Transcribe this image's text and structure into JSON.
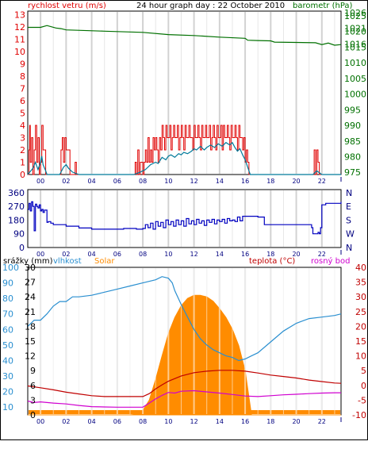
{
  "header": {
    "wind_label": "rychlost vetru (m/s)",
    "title": "24 hour graph day : 22 October 2010",
    "baro_label": "barometr (hPa)"
  },
  "legend": {
    "rain": "srážky (mm)",
    "humidity": "vlhkost",
    "solar": "Solar",
    "temp": "teplota (°C)",
    "dew": "rosný bod"
  },
  "colors": {
    "wind": "#e00000",
    "wind_avg": "#007a9a",
    "baro": "#007000",
    "dir": "#0000c0",
    "humidity": "#2a8fd0",
    "solar": "#ff8c00",
    "temp": "#c00000",
    "dew": "#d000d0",
    "rain": "#000080",
    "grid": "#c8c8c8"
  },
  "chart_data": [
    {
      "type": "line",
      "name": "wind-pressure",
      "x_ticks": [
        "00",
        "02",
        "04",
        "06",
        "08",
        "10",
        "12",
        "14",
        "16",
        "18",
        "20",
        "22"
      ],
      "x_range": [
        -1,
        23.5
      ],
      "y_left": {
        "label": "rychlost vetru (m/s)",
        "ticks": [
          0,
          1,
          2,
          3,
          4,
          5,
          6,
          7,
          8,
          9,
          10,
          11,
          12,
          13
        ],
        "range": [
          0,
          13.3
        ]
      },
      "y_right": {
        "label": "barometr (hPa)",
        "ticks": [
          975,
          980,
          985,
          990,
          995,
          1000,
          1005,
          1010,
          1015,
          1016,
          1020,
          1021,
          1025,
          1026
        ],
        "range": [
          974.3,
          1026.5
        ]
      },
      "series": [
        {
          "name": "gust",
          "color": "wind",
          "x": [
            -1,
            -0.9,
            -0.85,
            -0.8,
            -0.7,
            -0.6,
            -0.5,
            -0.4,
            -0.3,
            -0.2,
            -0.1,
            0,
            0.1,
            0.2,
            0.4,
            0.5,
            1.5,
            1.6,
            1.7,
            1.8,
            1.9,
            2.0,
            2.2,
            2.3,
            2.6,
            2.7,
            2.8,
            3.0,
            7.3,
            7.4,
            7.5,
            7.6,
            7.7,
            7.8,
            8.0,
            8.1,
            8.2,
            8.3,
            8.4,
            8.5,
            8.6,
            8.7,
            8.8,
            8.9,
            9.0,
            9.1,
            9.2,
            9.3,
            9.4,
            9.5,
            9.6,
            9.7,
            9.8,
            9.9,
            10.0,
            10.1,
            10.2,
            10.3,
            10.4,
            10.5,
            10.6,
            10.7,
            10.8,
            10.9,
            11.0,
            11.1,
            11.2,
            11.3,
            11.4,
            11.5,
            11.6,
            11.7,
            11.8,
            11.9,
            12.0,
            12.1,
            12.2,
            12.3,
            12.4,
            12.5,
            12.6,
            12.7,
            12.8,
            12.9,
            13.0,
            13.1,
            13.2,
            13.3,
            13.4,
            13.5,
            13.6,
            13.7,
            13.8,
            13.9,
            14.0,
            14.1,
            14.2,
            14.3,
            14.4,
            14.5,
            14.6,
            14.7,
            14.8,
            14.9,
            15.0,
            15.1,
            15.2,
            15.3,
            15.4,
            15.5,
            15.6,
            15.7,
            15.8,
            15.9,
            16.0,
            16.1,
            16.2,
            16.3,
            16.4,
            21.3,
            21.4,
            21.5,
            21.6,
            21.7,
            21.8,
            23.5
          ],
          "y": [
            0,
            2,
            4,
            1,
            3,
            0,
            2,
            4,
            1,
            3,
            0,
            1,
            4,
            2,
            0,
            0,
            0,
            2,
            3,
            1,
            3,
            2,
            2,
            0,
            0,
            1,
            0,
            0,
            0,
            1,
            0,
            2,
            0,
            1,
            0,
            1,
            2,
            1,
            3,
            1,
            2,
            1,
            3,
            2,
            3,
            2,
            1,
            3,
            2,
            4,
            3,
            2,
            4,
            3,
            3,
            4,
            2,
            3,
            4,
            3,
            3,
            4,
            2,
            3,
            4,
            3,
            2,
            4,
            3,
            3,
            4,
            3,
            3,
            2,
            4,
            3,
            3,
            4,
            3,
            2,
            4,
            3,
            3,
            4,
            3,
            3,
            4,
            2,
            3,
            4,
            3,
            2,
            4,
            3,
            3,
            4,
            2,
            4,
            3,
            3,
            4,
            3,
            2,
            4,
            3,
            3,
            4,
            3,
            2,
            4,
            3,
            3,
            2,
            3,
            1,
            2,
            1,
            0,
            0,
            0,
            2,
            0,
            2,
            1,
            0,
            0
          ]
        },
        {
          "name": "average",
          "color": "wind_avg",
          "x": [
            -1,
            -0.6,
            -0.4,
            -0.2,
            0,
            0.1,
            0.2,
            0.4,
            0.5,
            1.5,
            1.8,
            2.0,
            2.2,
            2.5,
            3.0,
            7.3,
            7.8,
            8.2,
            8.6,
            9.0,
            9.2,
            9.5,
            9.8,
            10.0,
            10.2,
            10.5,
            10.8,
            11.0,
            11.2,
            11.5,
            11.8,
            12.0,
            12.2,
            12.5,
            12.8,
            13.0,
            13.3,
            13.6,
            13.9,
            14.2,
            14.5,
            14.8,
            15.0,
            15.2,
            15.4,
            15.6,
            15.8,
            16.0,
            16.2,
            16.4,
            21.3,
            21.6,
            22,
            23.5
          ],
          "y": [
            0,
            0.5,
            1.0,
            0.4,
            1.0,
            1.5,
            0.8,
            0.3,
            0,
            0,
            0.6,
            0.8,
            0.5,
            0.2,
            0,
            0,
            0.2,
            0.4,
            0.8,
            1.0,
            0.9,
            1.4,
            1.2,
            1.5,
            1.6,
            1.4,
            1.7,
            1.6,
            1.8,
            1.7,
            1.9,
            2.1,
            2.0,
            2.3,
            2.0,
            2.2,
            2.4,
            2.2,
            2.5,
            2.3,
            2.6,
            2.4,
            2.6,
            2.2,
            1.9,
            2.1,
            1.6,
            1.2,
            0.6,
            0,
            0,
            0.3,
            0,
            0
          ]
        },
        {
          "name": "barometer",
          "color": "baro",
          "axis": "right",
          "x": [
            -1,
            0,
            0.5,
            1.2,
            1.6,
            2.0,
            5.0,
            8.0,
            10.0,
            12.0,
            14.0,
            16.0,
            16.2,
            17.0,
            18.0,
            18.3,
            20.0,
            21.5,
            22.0,
            22.5,
            23.0,
            23.5
          ],
          "y": [
            1021.3,
            1021.3,
            1021.9,
            1021.1,
            1020.9,
            1020.5,
            1020.1,
            1019.7,
            1019.0,
            1018.7,
            1018.2,
            1017.8,
            1017.2,
            1017.1,
            1017.0,
            1016.6,
            1016.5,
            1016.4,
            1015.8,
            1016.3,
            1015.6,
            1015.8
          ]
        }
      ]
    },
    {
      "type": "line",
      "name": "wind-direction",
      "x_ticks": [
        "00",
        "02",
        "04",
        "06",
        "08",
        "10",
        "12",
        "14",
        "16",
        "18",
        "20",
        "22"
      ],
      "x_range": [
        -1,
        23.5
      ],
      "y_left": {
        "ticks": [
          0,
          90,
          180,
          270,
          360
        ],
        "range": [
          0,
          380
        ]
      },
      "y_right": {
        "ticks": [
          "N",
          "W",
          "S",
          "E",
          "N"
        ]
      },
      "series": [
        {
          "name": "direction",
          "color": "dir",
          "x": [
            -1,
            -0.9,
            -0.8,
            -0.7,
            -0.6,
            -0.5,
            -0.4,
            -0.3,
            -0.2,
            -0.1,
            0,
            0.1,
            0.2,
            0.3,
            0.5,
            0.6,
            0.8,
            1.0,
            1.5,
            2.0,
            2.5,
            3.0,
            4.0,
            5.0,
            6.0,
            6.5,
            7.0,
            7.5,
            8.0,
            8.2,
            8.4,
            8.6,
            8.8,
            9.0,
            9.2,
            9.4,
            9.6,
            9.8,
            10.0,
            10.2,
            10.4,
            10.6,
            10.8,
            11.0,
            11.2,
            11.4,
            11.6,
            11.8,
            12.0,
            12.2,
            12.4,
            12.6,
            12.8,
            13.0,
            13.2,
            13.4,
            13.6,
            13.8,
            14.0,
            14.2,
            14.4,
            14.6,
            14.8,
            15.0,
            15.2,
            15.4,
            15.6,
            15.8,
            16.0,
            16.5,
            17.0,
            17.5,
            18.0,
            19.0,
            20.0,
            21.0,
            21.2,
            21.3,
            21.5,
            21.7,
            21.8,
            21.9,
            22.0,
            22.3,
            23.5
          ],
          "y": [
            250,
            290,
            240,
            300,
            270,
            110,
            285,
            270,
            260,
            280,
            240,
            250,
            230,
            245,
            165,
            170,
            160,
            150,
            150,
            140,
            140,
            128,
            120,
            120,
            120,
            125,
            125,
            120,
            125,
            150,
            130,
            160,
            120,
            170,
            140,
            165,
            130,
            180,
            150,
            170,
            140,
            180,
            150,
            175,
            140,
            190,
            155,
            175,
            150,
            185,
            160,
            175,
            145,
            180,
            165,
            185,
            155,
            180,
            170,
            185,
            160,
            190,
            175,
            180,
            170,
            200,
            175,
            205,
            205,
            205,
            200,
            150,
            150,
            150,
            150,
            150,
            130,
            90,
            90,
            100,
            90,
            130,
            280,
            290,
            300
          ]
        }
      ]
    },
    {
      "type": "line",
      "name": "temperature-humidity",
      "x_ticks": [
        "00",
        "02",
        "04",
        "06",
        "08",
        "10",
        "12",
        "14",
        "16",
        "18",
        "20",
        "22"
      ],
      "x_range": [
        -1,
        23.5
      ],
      "y_axes": {
        "rain": {
          "label": "srážky (mm)",
          "ticks": [
            0,
            3,
            6,
            9,
            12,
            15,
            18,
            21,
            24,
            27,
            30
          ],
          "range": [
            0,
            30
          ]
        },
        "humidity": {
          "label": "vlhkost",
          "ticks": [
            10,
            20,
            30,
            40,
            50,
            60,
            70,
            80,
            90,
            100
          ],
          "range": [
            5,
            100
          ]
        },
        "solar": {
          "label": "Solar"
        },
        "temp": {
          "label": "teplota (°C)",
          "ticks": [
            -10,
            -5,
            0,
            5,
            10,
            15,
            20,
            25,
            30,
            35,
            40
          ],
          "range": [
            -10,
            40
          ]
        }
      },
      "series": [
        {
          "name": "vlhkost",
          "color": "humidity",
          "x": [
            -1,
            -0.5,
            0,
            0.5,
            1,
            1.5,
            2,
            2.5,
            3,
            4,
            5,
            6,
            7,
            8,
            9,
            9.5,
            10,
            10.3,
            10.5,
            11,
            11.5,
            12,
            12.5,
            13,
            13.5,
            14,
            14.5,
            15,
            15.5,
            16,
            16.5,
            17,
            18,
            19,
            20,
            21,
            22,
            23,
            23.5
          ],
          "y": [
            62,
            66,
            66,
            70,
            75,
            78,
            78,
            81,
            81,
            82,
            84,
            86,
            88,
            90,
            92,
            94,
            93,
            90,
            85,
            76,
            68,
            60,
            54,
            50,
            47,
            45,
            43,
            42,
            40,
            41,
            43,
            45,
            52,
            59,
            64,
            67,
            68,
            69,
            70
          ]
        },
        {
          "name": "teplota",
          "color": "temp",
          "x": [
            -1,
            0,
            1,
            2,
            3,
            4,
            5,
            6,
            7,
            8,
            8.5,
            9,
            9.5,
            10,
            11,
            12,
            13,
            14,
            15,
            16,
            17,
            18,
            19,
            20,
            21,
            22,
            23,
            23.5
          ],
          "y": [
            -0.2,
            -0.8,
            -1.5,
            -2.3,
            -2.9,
            -3.5,
            -3.8,
            -3.8,
            -3.8,
            -3.8,
            -2.8,
            -1.2,
            0.2,
            1.4,
            3.2,
            4.3,
            4.8,
            5.1,
            5.1,
            4.8,
            4.2,
            3.5,
            3.0,
            2.5,
            1.8,
            1.3,
            0.8,
            0.7
          ]
        },
        {
          "name": "rosný bod",
          "color": "dew",
          "x": [
            -1,
            -0.5,
            0,
            1,
            2,
            3,
            4,
            5,
            6,
            7,
            8,
            8.5,
            9,
            9.5,
            10,
            10.5,
            11,
            12,
            13,
            14,
            15,
            16,
            17,
            18,
            19,
            20,
            21,
            22,
            23,
            23.5
          ],
          "y": [
            -5.3,
            -5.8,
            -5.6,
            -6.0,
            -6.3,
            -6.8,
            -7.2,
            -7.3,
            -7.4,
            -7.4,
            -7.4,
            -6.0,
            -4.6,
            -3.4,
            -2.4,
            -2.6,
            -2.0,
            -1.8,
            -2.2,
            -2.6,
            -3.1,
            -3.6,
            -3.8,
            -3.5,
            -3.2,
            -3.0,
            -2.8,
            -2.6,
            -2.5,
            -2.5
          ]
        },
        {
          "name": "Solar",
          "color": "solar",
          "fill": "area",
          "x": [
            -1,
            7.0,
            7.5,
            8.0,
            8.5,
            9.0,
            9.5,
            10.0,
            10.5,
            11.0,
            11.5,
            12.0,
            12.5,
            13.0,
            13.5,
            14.0,
            14.5,
            15.0,
            15.5,
            16.0,
            16.3,
            16.5,
            23.5
          ],
          "y": [
            0,
            0,
            0.5,
            3,
            10,
            24,
            40,
            55,
            66,
            74,
            79,
            81,
            81,
            80,
            77,
            72,
            66,
            58,
            47,
            30,
            12,
            0,
            0
          ]
        },
        {
          "name": "srážky",
          "color": "rain",
          "fill": "area",
          "x": [
            -1,
            23.5
          ],
          "y": [
            0,
            0
          ]
        }
      ]
    }
  ]
}
